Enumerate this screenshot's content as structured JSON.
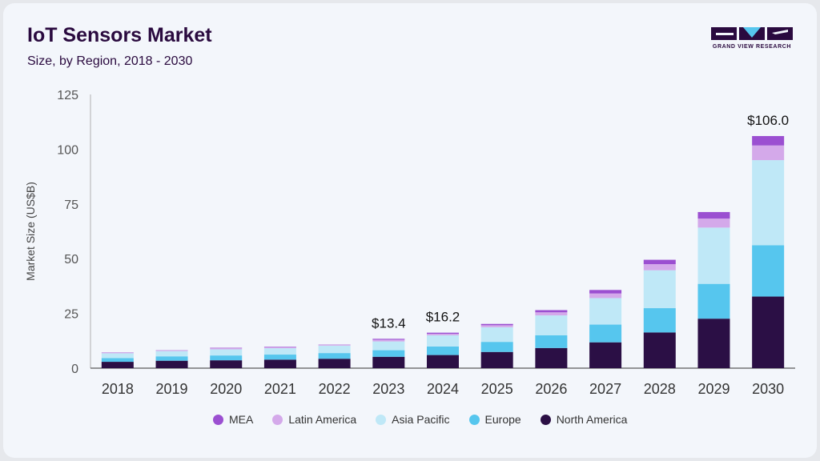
{
  "header": {
    "title": "IoT Sensors Market",
    "subtitle": "Size, by Region, 2018 - 2030"
  },
  "logo": {
    "text": "GRAND VIEW RESEARCH"
  },
  "chart_data": {
    "type": "bar",
    "stacked": true,
    "ylabel": "Market Size (US$B)",
    "ylim": [
      0,
      125
    ],
    "yticks": [
      0,
      25,
      50,
      75,
      100,
      125
    ],
    "categories": [
      "2018",
      "2019",
      "2020",
      "2021",
      "2022",
      "2023",
      "2024",
      "2025",
      "2026",
      "2027",
      "2028",
      "2029",
      "2030"
    ],
    "series": [
      {
        "name": "North America",
        "color": "#2b0f45",
        "values": [
          2.9,
          3.4,
          3.6,
          3.9,
          4.3,
          5.2,
          6.0,
          7.4,
          9.2,
          11.8,
          16.3,
          22.6,
          32.7
        ]
      },
      {
        "name": "Europe",
        "color": "#56c6ee",
        "values": [
          1.7,
          2.0,
          2.2,
          2.3,
          2.6,
          3.0,
          3.9,
          4.6,
          5.8,
          8.1,
          11.1,
          15.9,
          23.4
        ]
      },
      {
        "name": "Asia Pacific",
        "color": "#bfe8f7",
        "values": [
          2.2,
          2.4,
          2.8,
          2.9,
          3.4,
          4.0,
          5.1,
          6.7,
          9.1,
          12.1,
          17.3,
          25.7,
          38.9
        ]
      },
      {
        "name": "Latin America",
        "color": "#d4a9ea",
        "values": [
          0.3,
          0.3,
          0.5,
          0.5,
          0.4,
          0.8,
          0.7,
          0.9,
          1.4,
          2.1,
          2.8,
          4.1,
          6.7
        ]
      },
      {
        "name": "MEA",
        "color": "#9b4fd1",
        "values": [
          0.1,
          0.1,
          0.2,
          0.2,
          0.1,
          0.4,
          0.5,
          0.6,
          1.0,
          1.6,
          2.0,
          3.0,
          4.3
        ]
      }
    ],
    "annotations": [
      {
        "category": "2023",
        "label": "$13.4"
      },
      {
        "category": "2024",
        "label": "$16.2"
      },
      {
        "category": "2030",
        "label": "$106.0"
      }
    ],
    "legend": {
      "placement": "bottom",
      "order": [
        "MEA",
        "Latin America",
        "Asia Pacific",
        "Europe",
        "North America"
      ]
    },
    "grid": false
  }
}
